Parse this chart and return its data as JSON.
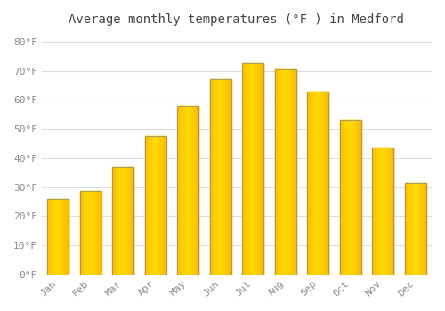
{
  "title": "Average monthly temperatures (°F ) in Medford",
  "months": [
    "Jan",
    "Feb",
    "Mar",
    "Apr",
    "May",
    "Jun",
    "Jul",
    "Aug",
    "Sep",
    "Oct",
    "Nov",
    "Dec"
  ],
  "values": [
    26,
    28.5,
    37,
    47.5,
    58,
    67,
    72.5,
    70.5,
    63,
    53,
    43.5,
    31.5
  ],
  "bar_color_center": "#FFD600",
  "bar_color_edge": "#F5A800",
  "bar_edge_color": "#888888",
  "background_color": "#FFFFFF",
  "grid_color": "#DDDDDD",
  "yticks": [
    0,
    10,
    20,
    30,
    40,
    50,
    60,
    70,
    80
  ],
  "ylim": [
    0,
    83
  ],
  "tick_label_color": "#888888",
  "title_color": "#444444",
  "font_family": "monospace",
  "title_fontsize": 10,
  "tick_fontsize": 8
}
